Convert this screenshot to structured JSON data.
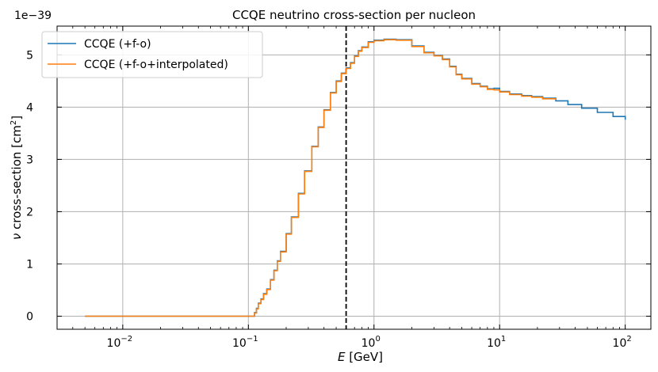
{
  "chart_data": {
    "type": "line",
    "title": "CCQE neutrino cross-section per nucleon",
    "xlabel": "E [GeV]",
    "ylabel": "ν cross-section [cm²]",
    "y_offset_label": "1e−39",
    "x_scale": "log",
    "xlim": [
      0.003,
      160
    ],
    "ylim": [
      -0.25,
      5.55
    ],
    "x_ticks": [
      0.01,
      0.1,
      1,
      10,
      100
    ],
    "x_tick_labels": [
      {
        "base": "10",
        "exp": "−2"
      },
      {
        "base": "10",
        "exp": "−1"
      },
      {
        "base": "10",
        "exp": "0"
      },
      {
        "base": "10",
        "exp": "1"
      },
      {
        "base": "10",
        "exp": "2"
      }
    ],
    "y_ticks": [
      0,
      1,
      2,
      3,
      4,
      5
    ],
    "y_tick_labels": [
      "0",
      "1",
      "2",
      "3",
      "4",
      "5"
    ],
    "grid": true,
    "legend_position": "top-left",
    "vline": {
      "x": 0.6,
      "color": "#000000",
      "style": "dashed"
    },
    "series": [
      {
        "name": "CCQE (+f-o)",
        "color": "#1f77b4",
        "x": [
          0.005,
          0.108,
          0.112,
          0.116,
          0.12,
          0.126,
          0.132,
          0.14,
          0.15,
          0.16,
          0.17,
          0.18,
          0.2,
          0.22,
          0.25,
          0.28,
          0.32,
          0.36,
          0.4,
          0.45,
          0.5,
          0.55,
          0.6,
          0.65,
          0.7,
          0.75,
          0.8,
          0.9,
          1.0,
          1.2,
          1.5,
          2.0,
          2.5,
          3.0,
          3.5,
          4.0,
          4.5,
          5.0,
          6.0,
          7.0,
          8.0,
          9.0,
          10.0,
          12.0,
          15.0,
          18.0,
          22.0,
          28.0,
          35.0,
          45.0,
          60.0,
          80.0,
          100.0
        ],
        "y": [
          0.0,
          0.0,
          0.07,
          0.15,
          0.25,
          0.33,
          0.43,
          0.52,
          0.7,
          0.88,
          1.06,
          1.24,
          1.58,
          1.9,
          2.35,
          2.78,
          3.25,
          3.62,
          3.95,
          4.28,
          4.5,
          4.65,
          4.75,
          4.85,
          4.98,
          5.08,
          5.15,
          5.25,
          5.28,
          5.3,
          5.29,
          5.17,
          5.05,
          4.99,
          4.92,
          4.78,
          4.63,
          4.55,
          4.45,
          4.4,
          4.35,
          4.36,
          4.3,
          4.25,
          4.22,
          4.2,
          4.17,
          4.12,
          4.05,
          3.98,
          3.9,
          3.82,
          3.76
        ]
      },
      {
        "name": "CCQE (+f-o+interpolated)",
        "color": "#ff7f0e",
        "x": [
          0.005,
          0.108,
          0.112,
          0.116,
          0.12,
          0.126,
          0.132,
          0.14,
          0.15,
          0.16,
          0.17,
          0.18,
          0.2,
          0.22,
          0.25,
          0.28,
          0.32,
          0.36,
          0.4,
          0.45,
          0.5,
          0.55,
          0.6,
          0.65,
          0.7,
          0.75,
          0.8,
          0.9,
          1.0,
          1.2,
          1.5,
          2.0,
          2.5,
          3.0,
          3.5,
          4.0,
          4.5,
          5.0,
          6.0,
          7.0,
          8.0,
          9.0,
          10.0,
          12.0,
          15.0,
          18.0,
          22.0,
          28.0
        ],
        "y": [
          0.0,
          0.0,
          0.06,
          0.14,
          0.24,
          0.32,
          0.42,
          0.51,
          0.69,
          0.87,
          1.05,
          1.23,
          1.57,
          1.89,
          2.34,
          2.77,
          3.24,
          3.61,
          3.94,
          4.27,
          4.49,
          4.64,
          4.74,
          4.84,
          4.97,
          5.07,
          5.14,
          5.24,
          5.27,
          5.29,
          5.28,
          5.16,
          5.04,
          4.98,
          4.91,
          4.77,
          4.62,
          4.54,
          4.44,
          4.39,
          4.34,
          4.33,
          4.29,
          4.24,
          4.21,
          4.19,
          4.16,
          4.14
        ]
      }
    ]
  }
}
